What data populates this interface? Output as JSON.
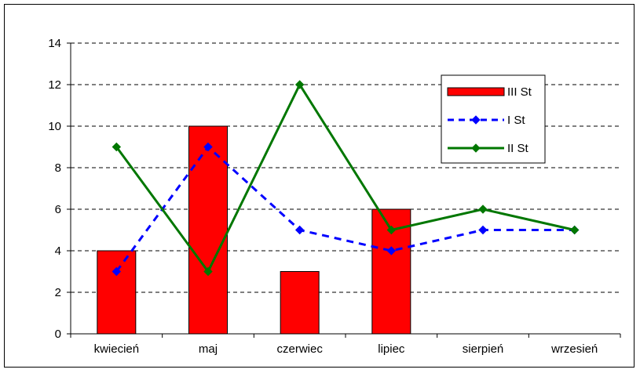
{
  "chart_data": {
    "type": "bar",
    "title": "",
    "xlabel": "",
    "ylabel": "",
    "categories": [
      "kwiecień",
      "maj",
      "czerwiec",
      "lipiec",
      "sierpień",
      "wrzesień"
    ],
    "ylim": [
      0,
      14
    ],
    "yticks": [
      0,
      2,
      4,
      6,
      8,
      10,
      12,
      14
    ],
    "grid": true,
    "legend_position": "top-right",
    "series": [
      {
        "name": "III St",
        "type": "bar",
        "values": [
          4,
          10,
          3,
          6,
          null,
          null
        ],
        "color": "#ff0000"
      },
      {
        "name": "I St",
        "type": "line",
        "style": "dashed",
        "marker": "diamond",
        "values": [
          3,
          9,
          5,
          4,
          5,
          5
        ],
        "color": "#0000ff"
      },
      {
        "name": "II St",
        "type": "line",
        "style": "solid",
        "marker": "diamond",
        "values": [
          9,
          3,
          12,
          5,
          6,
          5
        ],
        "color": "#007700"
      }
    ]
  }
}
